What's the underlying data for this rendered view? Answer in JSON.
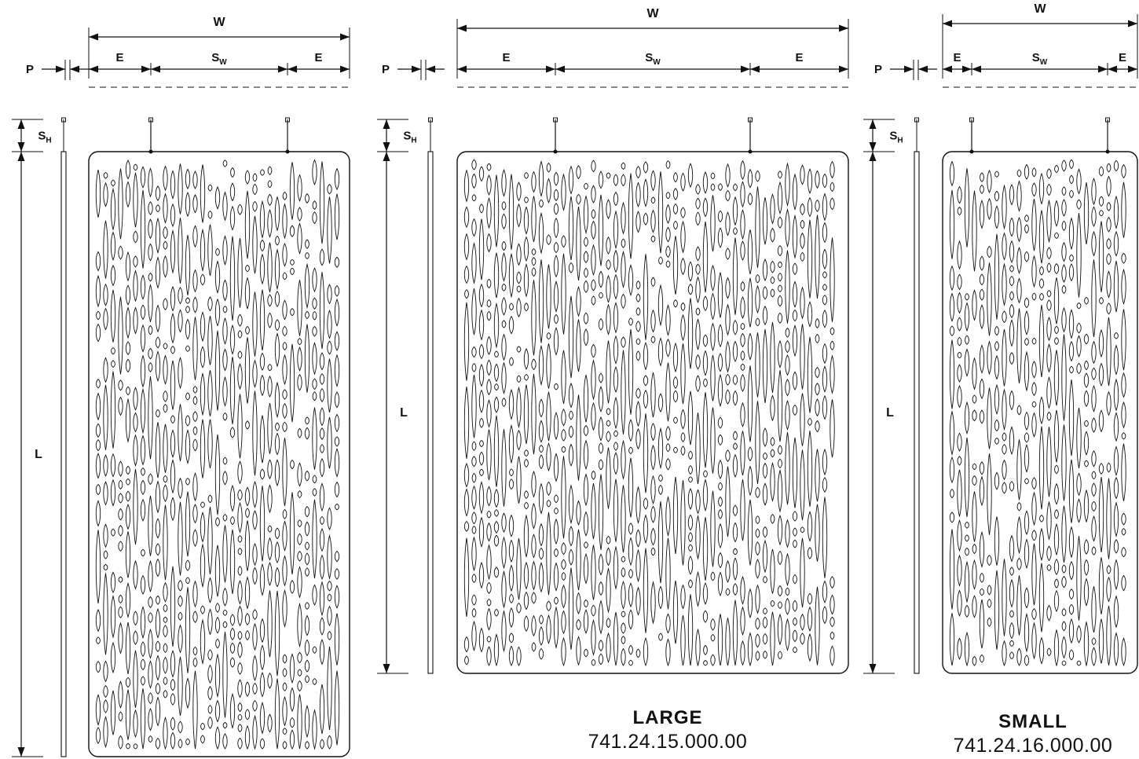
{
  "dimension_labels": {
    "width": "W",
    "edge": "E",
    "span_main": "S",
    "span_sub_w": "W",
    "span_sub_h": "H",
    "panel_thickness": "P",
    "length": "L"
  },
  "panels": [
    {
      "name": "",
      "code": ""
    },
    {
      "name": "LARGE",
      "code": "741.24.15.000.00"
    },
    {
      "name": "SMALL",
      "code": "741.24.16.000.00"
    }
  ],
  "colors": {
    "line": "#111111",
    "background": "#ffffff"
  }
}
